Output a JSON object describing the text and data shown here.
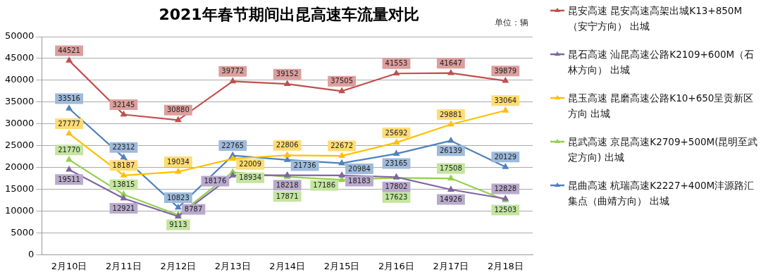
{
  "chart_data": {
    "type": "line",
    "title": "2021年春节期间出昆高速车流量对比",
    "annotations": [
      "单位：辆"
    ],
    "categories": [
      "2月10日",
      "2月11日",
      "2月12日",
      "2月13日",
      "2月14日",
      "2月15日",
      "2月16日",
      "2月17日",
      "2月18日"
    ],
    "series": [
      {
        "name": "昆安高速 昆安高速高架出城K13+850M（安宁方向） 出城",
        "color": "#c0504d",
        "values": [
          44521,
          32145,
          30880,
          39772,
          39152,
          37505,
          41553,
          41647,
          39879
        ]
      },
      {
        "name": "昆石高速 汕昆高速公路K2109+600M（石林方向） 出城",
        "color": "#8064a2",
        "values": [
          19511,
          12921,
          8787,
          18176,
          18218,
          18183,
          17802,
          14926,
          12828
        ]
      },
      {
        "name": "昆玉高速 昆磨高速公路K10+650呈贡新区方向 出城",
        "color": "#ffc000",
        "values": [
          27777,
          18187,
          19034,
          22009,
          22806,
          22672,
          25692,
          29881,
          33064
        ]
      },
      {
        "name": "昆武高速 京昆高速K2709+500M(昆明至武定方向) 出城",
        "color": "#92d050",
        "values": [
          21770,
          13815,
          9113,
          18934,
          17871,
          17186,
          17623,
          17508,
          12503
        ]
      },
      {
        "name": "昆曲高速 杭瑞高速K2227+400M沣源路汇集点（曲靖方向） 出城",
        "color": "#4f81bd",
        "values": [
          33516,
          22312,
          10823,
          22765,
          21736,
          20984,
          23165,
          26139,
          20129
        ]
      }
    ],
    "ylim": [
      0,
      50000
    ],
    "yticks": [
      0,
      5000,
      10000,
      15000,
      20000,
      25000,
      30000,
      35000,
      40000,
      45000,
      50000
    ],
    "grid": "y",
    "legend": "right",
    "marker": "triangle",
    "line_style": "solid",
    "data_labels": true
  }
}
